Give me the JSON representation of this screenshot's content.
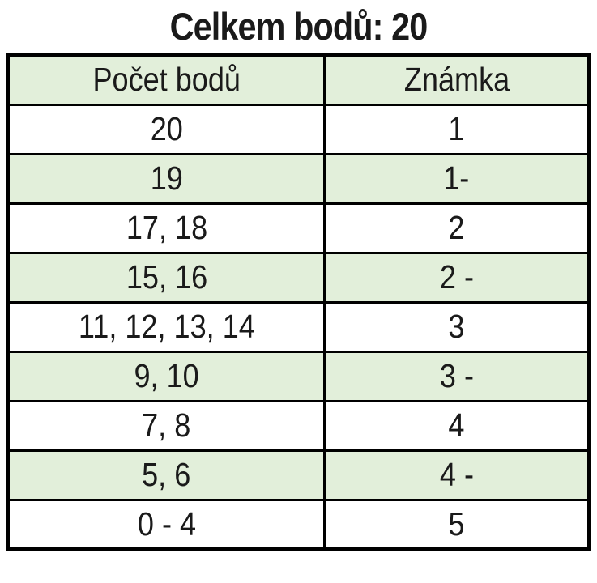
{
  "title": "Celkem bodů: 20",
  "table": {
    "headers": [
      "Počet bodů",
      "Známka"
    ],
    "rows": [
      {
        "points": "20",
        "grade": "1"
      },
      {
        "points": "19",
        "grade": "1-"
      },
      {
        "points": "17, 18",
        "grade": "2"
      },
      {
        "points": "15, 16",
        "grade": "2 -"
      },
      {
        "points": "11, 12, 13, 14",
        "grade": "3"
      },
      {
        "points": "9, 10",
        "grade": "3 -"
      },
      {
        "points": "7, 8",
        "grade": "4"
      },
      {
        "points": "5, 6",
        "grade": "4 -"
      },
      {
        "points": "0 - 4",
        "grade": "5"
      }
    ],
    "colors": {
      "row_alt_bg": "#e2efda",
      "border": "#000000",
      "text": "#1a1a1a"
    }
  }
}
